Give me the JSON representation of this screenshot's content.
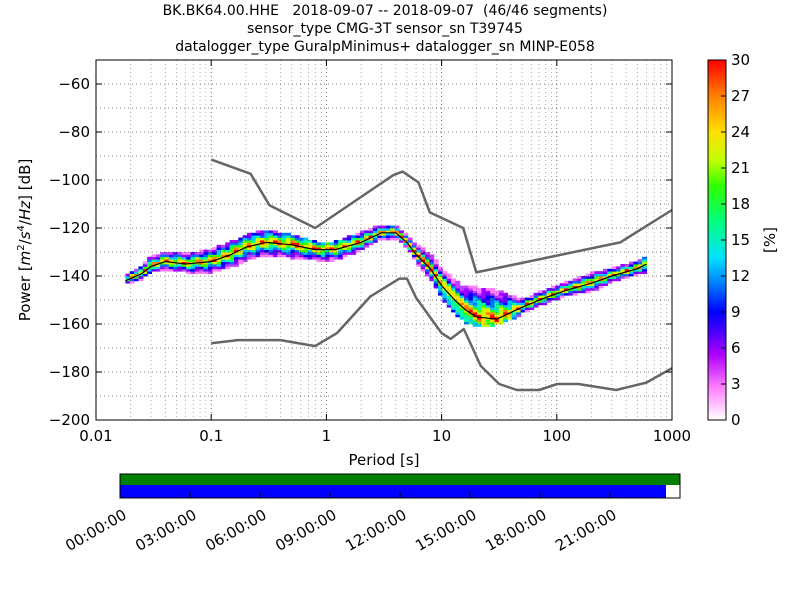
{
  "title_lines": [
    "BK.BK64.00.HHE   2018-09-07 -- 2018-09-07  (46/46 segments)",
    "sensor_type CMG-3T sensor_sn T39745",
    "datalogger_type GuralpMinimus+ datalogger_sn MINP-E058"
  ],
  "chart_data": [
    {
      "type": "heatmap",
      "xlabel": "Period [s]",
      "ylabel": "Power [m²/s⁴/Hz] [dB]",
      "ylabel_parts": {
        "prefix": "Power [",
        "m": "m",
        "two": "2",
        "slash1": "/",
        "s": "s",
        "four": "4",
        "slash2": "/",
        "hz": "Hz",
        "suffix": "] [dB]"
      },
      "x_scale": "log",
      "xlim": [
        0.01,
        1000
      ],
      "ylim": [
        -200,
        -50
      ],
      "x_ticks": [
        0.01,
        0.1,
        1,
        10,
        100,
        1000
      ],
      "x_tick_labels": [
        "0.01",
        "0.1",
        "1",
        "10",
        "100",
        "1000"
      ],
      "y_ticks": [
        -200,
        -180,
        -160,
        -140,
        -120,
        -100,
        -80,
        -60
      ],
      "y_tick_labels": [
        "−200",
        "−180",
        "−160",
        "−140",
        "−120",
        "−100",
        "−80",
        "−60"
      ],
      "grid": true,
      "colorbar": {
        "label": "[%]",
        "range": [
          0,
          30
        ],
        "ticks": [
          0,
          3,
          6,
          9,
          12,
          15,
          18,
          21,
          24,
          27,
          30
        ],
        "tick_labels": [
          "0",
          "3",
          "6",
          "9",
          "12",
          "15",
          "18",
          "21",
          "24",
          "27",
          "30"
        ]
      },
      "nhnm": {
        "name": "",
        "color": "#666666",
        "x": [
          0.1,
          0.22,
          0.32,
          0.8,
          3.8,
          4.6,
          6.3,
          7.9,
          15.4,
          20,
          354.8,
          1000
        ],
        "y": [
          -91.5,
          -97.4,
          -110.5,
          -120,
          -98,
          -96.5,
          -101,
          -113.5,
          -120,
          -138.5,
          -126,
          -112.5
        ]
      },
      "nlnm": {
        "name": "",
        "color": "#666666",
        "x": [
          0.1,
          0.17,
          0.4,
          0.8,
          1.24,
          2.4,
          4.3,
          5,
          6,
          10,
          12,
          15.6,
          21.9,
          31.6,
          45,
          70,
          101,
          154,
          328,
          600,
          1000
        ],
        "y": [
          -168,
          -166.7,
          -166.7,
          -169.2,
          -163.7,
          -148.6,
          -141.1,
          -141.1,
          -149,
          -163.8,
          -166.2,
          -162.1,
          -177.5,
          -185,
          -187.5,
          -187.5,
          -185,
          -185,
          -187.5,
          -184.4,
          -178.4
        ]
      },
      "median_curve": {
        "name": "",
        "color": "#000000",
        "x": [
          0.018,
          0.025,
          0.03,
          0.04,
          0.06,
          0.1,
          0.15,
          0.2,
          0.3,
          0.5,
          0.8,
          1.2,
          2,
          3,
          4,
          5,
          6,
          8,
          10,
          13,
          16,
          20,
          30,
          50,
          80,
          120,
          200,
          300,
          500,
          600
        ],
        "y": [
          -142,
          -139,
          -136,
          -134,
          -135,
          -134,
          -131,
          -128,
          -126,
          -127,
          -129,
          -129,
          -126,
          -122,
          -122,
          -126,
          -131,
          -137,
          -144,
          -150,
          -154,
          -157,
          -158,
          -153,
          -149,
          -146,
          -143,
          -140,
          -137,
          -135
        ]
      },
      "upper_envelope": {
        "x": [
          0.018,
          0.025,
          0.03,
          0.04,
          0.06,
          0.1,
          0.15,
          0.2,
          0.3,
          0.5,
          0.8,
          1.2,
          2,
          3,
          4,
          5,
          6,
          8,
          10,
          13,
          16,
          20,
          30,
          50,
          80,
          120,
          200,
          300,
          500,
          600
        ],
        "y": [
          -140,
          -136,
          -132,
          -131,
          -131,
          -130,
          -127,
          -124,
          -122,
          -124,
          -127,
          -127,
          -123,
          -120,
          -120,
          -123,
          -127,
          -131,
          -137,
          -142,
          -145,
          -145,
          -146,
          -150,
          -146,
          -143,
          -140,
          -137,
          -134,
          -133
        ]
      },
      "lower_envelope": {
        "x": [
          0.018,
          0.025,
          0.03,
          0.04,
          0.06,
          0.1,
          0.15,
          0.2,
          0.3,
          0.5,
          0.8,
          1.2,
          2,
          3,
          4,
          5,
          6,
          8,
          10,
          13,
          16,
          20,
          30,
          50,
          80,
          120,
          200,
          300,
          500,
          600
        ],
        "y": [
          -144,
          -141,
          -138,
          -138,
          -139,
          -139,
          -137,
          -134,
          -132,
          -133,
          -134,
          -134,
          -130,
          -125,
          -125,
          -128,
          -134,
          -141,
          -149,
          -155,
          -159,
          -161,
          -160,
          -156,
          -152,
          -149,
          -147,
          -143,
          -140,
          -139
        ]
      }
    },
    {
      "type": "timeline",
      "tick_labels": [
        "00:00:00",
        "03:00:00",
        "06:00:00",
        "09:00:00",
        "12:00:00",
        "15:00:00",
        "18:00:00",
        "21:00:00"
      ],
      "data_coverage_fraction": [
        0,
        1
      ],
      "psd_coverage_fraction": [
        0,
        0.975
      ],
      "data_color": "#008000",
      "psd_color": "#0000ff"
    }
  ]
}
